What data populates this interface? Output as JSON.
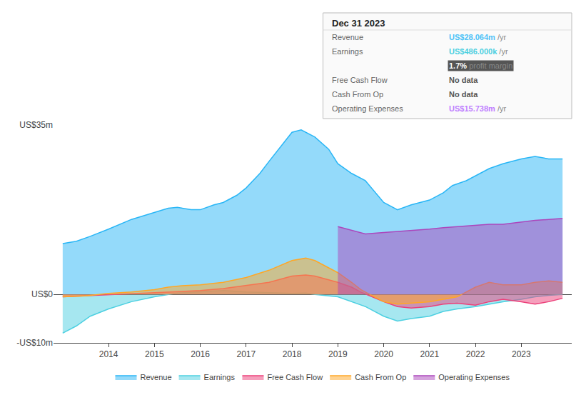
{
  "chart_data": {
    "type": "area",
    "xlim": [
      2012.8,
      2024.1
    ],
    "xticks": [
      2014,
      2015,
      2016,
      2017,
      2018,
      2019,
      2020,
      2021,
      2022,
      2023
    ],
    "ylim": [
      -10,
      35
    ],
    "yticks": [
      {
        "value": 35,
        "label": "US$35m"
      },
      {
        "value": 0,
        "label": "US$0"
      },
      {
        "value": -10,
        "label": "-US$10m"
      }
    ],
    "grid": "y",
    "legend": "bottom",
    "annotations": {
      "title": "Dec 31 2023",
      "rows": [
        {
          "label": "Revenue",
          "value": "US$28.064m",
          "unit": "/yr",
          "color": "#4fc3f7"
        },
        {
          "label": "Earnings",
          "value": "US$486.000k",
          "unit": "/yr",
          "color": "#4dd0e1"
        },
        {
          "value": "1.7%",
          "unit": "profit margin",
          "color": "#ffffff"
        },
        {
          "label": "Free Cash Flow",
          "value": "No data",
          "color": "#555555"
        },
        {
          "label": "Cash From Op",
          "value": "No data",
          "color": "#555555"
        },
        {
          "label": "Operating Expenses",
          "value": "US$15.738m",
          "unit": "/yr",
          "color": "#bf7fff"
        }
      ]
    },
    "series": [
      {
        "name": "Revenue",
        "color": "#29b6f6",
        "x": [
          2013.0,
          2013.3,
          2013.6,
          2014.0,
          2014.5,
          2015.0,
          2015.3,
          2015.5,
          2015.8,
          2016.0,
          2016.3,
          2016.5,
          2016.8,
          2017.0,
          2017.3,
          2017.5,
          2017.8,
          2018.0,
          2018.2,
          2018.5,
          2018.8,
          2019.0,
          2019.3,
          2019.6,
          2020.0,
          2020.3,
          2020.6,
          2021.0,
          2021.3,
          2021.5,
          2021.8,
          2022.0,
          2022.3,
          2022.6,
          2023.0,
          2023.3,
          2023.6,
          2023.9
        ],
        "values": [
          10.5,
          11.0,
          12.0,
          13.5,
          15.5,
          17.0,
          17.8,
          18.0,
          17.5,
          17.5,
          18.5,
          19.0,
          20.5,
          22.0,
          25.0,
          27.5,
          31.0,
          33.5,
          34.0,
          32.5,
          30.0,
          27.0,
          25.0,
          23.5,
          19.0,
          17.5,
          18.5,
          19.5,
          21.0,
          22.5,
          23.5,
          24.5,
          26.0,
          27.0,
          28.0,
          28.5,
          28.0,
          28.0
        ]
      },
      {
        "name": "Earnings",
        "color": "#4dd0e1",
        "x": [
          2013.0,
          2013.3,
          2013.6,
          2014.0,
          2014.5,
          2015.0,
          2015.5,
          2016.0,
          2016.5,
          2017.0,
          2017.5,
          2018.0,
          2018.3,
          2018.5,
          2019.0,
          2019.3,
          2019.6,
          2020.0,
          2020.3,
          2020.6,
          2021.0,
          2021.3,
          2021.6,
          2022.0,
          2022.3,
          2022.6,
          2023.0,
          2023.3,
          2023.6,
          2023.9
        ],
        "values": [
          -8.0,
          -6.5,
          -4.5,
          -3.0,
          -1.5,
          -0.5,
          0.3,
          0.5,
          0.8,
          0.5,
          0.3,
          0.2,
          0.3,
          0.0,
          -0.5,
          -1.5,
          -2.5,
          -4.5,
          -5.5,
          -5.0,
          -4.5,
          -3.5,
          -3.0,
          -2.5,
          -2.0,
          -1.5,
          -1.0,
          -0.5,
          -0.2,
          0.0
        ]
      },
      {
        "name": "Free Cash Flow",
        "color": "#ec407a",
        "x": [
          2013.0,
          2013.5,
          2014.0,
          2014.5,
          2015.0,
          2015.5,
          2016.0,
          2016.5,
          2017.0,
          2017.5,
          2018.0,
          2018.3,
          2018.5,
          2019.0,
          2019.3,
          2019.5,
          2020.0,
          2020.3,
          2020.6,
          2021.0,
          2021.3,
          2021.6,
          2022.0,
          2022.3,
          2022.6,
          2023.0,
          2023.3,
          2023.6,
          2023.9
        ],
        "values": [
          -0.5,
          -0.3,
          0.0,
          0.2,
          0.3,
          0.5,
          0.8,
          1.2,
          1.8,
          2.5,
          3.8,
          4.0,
          3.8,
          2.5,
          1.5,
          0.5,
          -1.5,
          -2.5,
          -2.8,
          -2.5,
          -2.0,
          -1.8,
          -2.2,
          -1.5,
          -1.0,
          -1.5,
          -2.0,
          -1.5,
          -0.8
        ]
      },
      {
        "name": "Cash From Op",
        "color": "#ffa726",
        "x": [
          2013.0,
          2013.5,
          2014.0,
          2014.5,
          2015.0,
          2015.3,
          2015.6,
          2016.0,
          2016.5,
          2017.0,
          2017.5,
          2018.0,
          2018.3,
          2018.5,
          2019.0,
          2019.3,
          2019.5,
          2020.0,
          2020.3,
          2020.6,
          2021.0,
          2021.3,
          2021.6,
          2022.0,
          2022.3,
          2022.6,
          2023.0,
          2023.3,
          2023.6,
          2023.9
        ],
        "values": [
          -0.5,
          -0.3,
          0.2,
          0.5,
          1.0,
          1.5,
          1.8,
          2.0,
          2.5,
          3.5,
          5.0,
          7.0,
          7.5,
          7.0,
          4.5,
          2.5,
          1.0,
          -1.5,
          -2.0,
          -1.8,
          -1.5,
          -1.0,
          -0.5,
          1.5,
          2.5,
          2.0,
          2.0,
          2.5,
          2.8,
          2.5
        ]
      },
      {
        "name": "Operating Expenses",
        "color": "#ab47bc",
        "x": [
          2019.0,
          2019.3,
          2019.6,
          2020.0,
          2020.3,
          2020.6,
          2021.0,
          2021.3,
          2021.6,
          2022.0,
          2022.3,
          2022.6,
          2023.0,
          2023.3,
          2023.6,
          2023.9
        ],
        "values": [
          14.0,
          13.2,
          12.5,
          12.8,
          13.0,
          13.2,
          13.5,
          13.8,
          14.0,
          14.2,
          14.5,
          14.5,
          15.0,
          15.3,
          15.5,
          15.7
        ]
      }
    ]
  }
}
